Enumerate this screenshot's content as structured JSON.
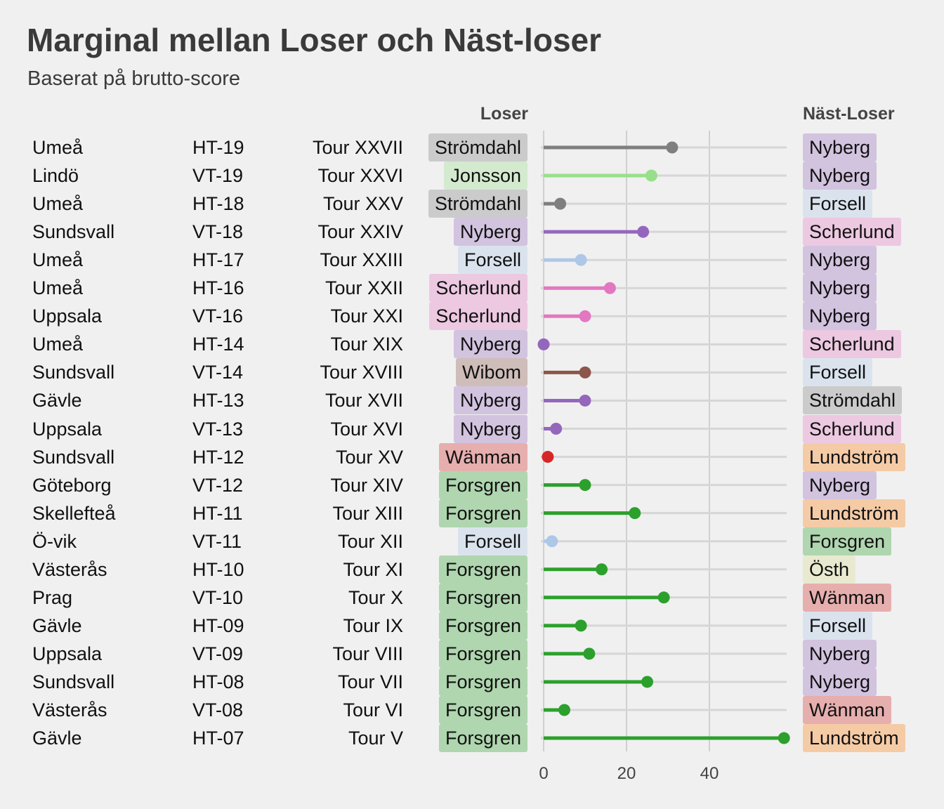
{
  "header": {
    "title": "Marginal mellan Loser och Näst-loser",
    "subtitle": "Baserat på brutto-score",
    "col_loser": "Loser",
    "col_next": "Näst-Loser"
  },
  "colors": {
    "Strömdahl": "#7f7f7f",
    "Jonsson": "#98df8a",
    "Nyberg": "#9467bd",
    "Forsell": "#aec7e8",
    "Scherlund": "#e377c2",
    "Wibom": "#8c564b",
    "Wänman": "#d62728",
    "Forsgren": "#2ca02c",
    "Lundström": "#ff7f0e",
    "Östh": "#dbdb8d"
  },
  "chart_data": {
    "type": "lollipop",
    "xlim": [
      0,
      58
    ],
    "xticks": [
      0,
      20,
      40
    ],
    "grid": true,
    "rows": [
      {
        "place": "Umeå",
        "term": "HT-19",
        "tour": "Tour XXVII",
        "loser": "Strömdahl",
        "next": "Nyberg",
        "margin": 31
      },
      {
        "place": "Lindö",
        "term": "VT-19",
        "tour": "Tour XXVI",
        "loser": "Jonsson",
        "next": "Nyberg",
        "margin": 26
      },
      {
        "place": "Umeå",
        "term": "HT-18",
        "tour": "Tour XXV",
        "loser": "Strömdahl",
        "next": "Forsell",
        "margin": 4
      },
      {
        "place": "Sundsvall",
        "term": "VT-18",
        "tour": "Tour XXIV",
        "loser": "Nyberg",
        "next": "Scherlund",
        "margin": 24
      },
      {
        "place": "Umeå",
        "term": "HT-17",
        "tour": "Tour XXIII",
        "loser": "Forsell",
        "next": "Nyberg",
        "margin": 9
      },
      {
        "place": "Umeå",
        "term": "HT-16",
        "tour": "Tour XXII",
        "loser": "Scherlund",
        "next": "Nyberg",
        "margin": 16
      },
      {
        "place": "Uppsala",
        "term": "VT-16",
        "tour": "Tour XXI",
        "loser": "Scherlund",
        "next": "Nyberg",
        "margin": 10
      },
      {
        "place": "Umeå",
        "term": "HT-14",
        "tour": "Tour XIX",
        "loser": "Nyberg",
        "next": "Scherlund",
        "margin": 0
      },
      {
        "place": "Sundsvall",
        "term": "VT-14",
        "tour": "Tour XVIII",
        "loser": "Wibom",
        "next": "Forsell",
        "margin": 10
      },
      {
        "place": "Gävle",
        "term": "HT-13",
        "tour": "Tour XVII",
        "loser": "Nyberg",
        "next": "Strömdahl",
        "margin": 10
      },
      {
        "place": "Uppsala",
        "term": "VT-13",
        "tour": "Tour XVI",
        "loser": "Nyberg",
        "next": "Scherlund",
        "margin": 3
      },
      {
        "place": "Sundsvall",
        "term": "HT-12",
        "tour": "Tour XV",
        "loser": "Wänman",
        "next": "Lundström",
        "margin": 1
      },
      {
        "place": "Göteborg",
        "term": "VT-12",
        "tour": "Tour XIV",
        "loser": "Forsgren",
        "next": "Nyberg",
        "margin": 10
      },
      {
        "place": "Skellefteå",
        "term": "HT-11",
        "tour": "Tour XIII",
        "loser": "Forsgren",
        "next": "Lundström",
        "margin": 22
      },
      {
        "place": "Ö-vik",
        "term": "VT-11",
        "tour": "Tour XII",
        "loser": "Forsell",
        "next": "Forsgren",
        "margin": 2
      },
      {
        "place": "Västerås",
        "term": "HT-10",
        "tour": "Tour XI",
        "loser": "Forsgren",
        "next": "Östh",
        "margin": 14
      },
      {
        "place": "Prag",
        "term": "VT-10",
        "tour": "Tour X",
        "loser": "Forsgren",
        "next": "Wänman",
        "margin": 29
      },
      {
        "place": "Gävle",
        "term": "HT-09",
        "tour": "Tour IX",
        "loser": "Forsgren",
        "next": "Forsell",
        "margin": 9
      },
      {
        "place": "Uppsala",
        "term": "VT-09",
        "tour": "Tour VIII",
        "loser": "Forsgren",
        "next": "Nyberg",
        "margin": 11
      },
      {
        "place": "Sundsvall",
        "term": "HT-08",
        "tour": "Tour VII",
        "loser": "Forsgren",
        "next": "Nyberg",
        "margin": 25
      },
      {
        "place": "Västerås",
        "term": "VT-08",
        "tour": "Tour VI",
        "loser": "Forsgren",
        "next": "Wänman",
        "margin": 5
      },
      {
        "place": "Gävle",
        "term": "HT-07",
        "tour": "Tour V",
        "loser": "Forsgren",
        "next": "Lundström",
        "margin": 58
      }
    ]
  }
}
